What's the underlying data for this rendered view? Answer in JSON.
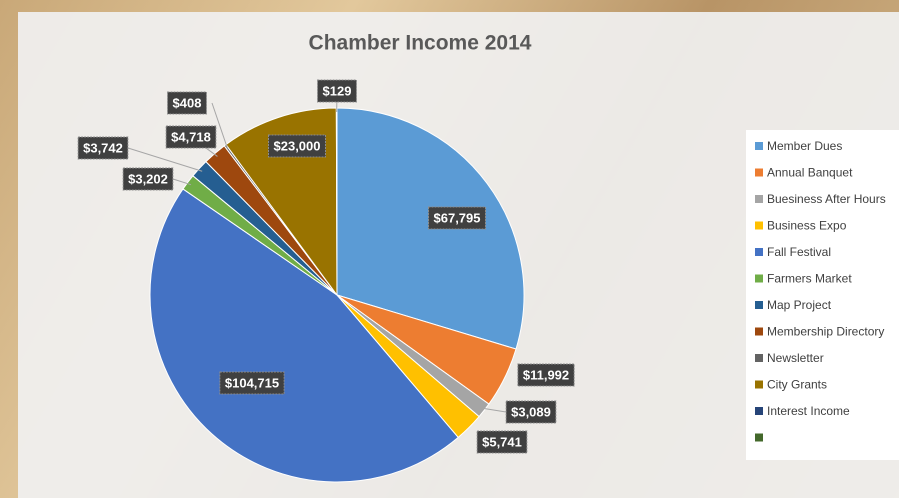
{
  "chart_data": {
    "type": "pie",
    "title": "Chamber Income 2014",
    "categories": [
      "Member Dues",
      "Annual Banquet",
      "Buesiness After Hours",
      "Business Expo",
      "Fall Festival",
      "Farmers Market",
      "Map Project",
      "Membership Directory",
      "Newsletter",
      "City Grants",
      "Interest Income",
      null
    ],
    "values": [
      67795,
      11992,
      3089,
      5741,
      104715,
      3202,
      3742,
      4718,
      408,
      23000,
      129,
      0
    ],
    "value_labels": [
      "$67,795",
      "$11,992",
      "$3,089",
      "$5,741",
      "$104,715",
      "$3,202",
      "$3,742",
      "$4,718",
      "$408",
      "$23,000",
      "$129",
      null
    ],
    "colors": [
      "#5b9bd5",
      "#ed7d31",
      "#a5a5a5",
      "#ffc000",
      "#4472c4",
      "#70ad47",
      "#255e91",
      "#9e480e",
      "#636363",
      "#997300",
      "#264478",
      "#43682b"
    ],
    "legend": "right"
  }
}
